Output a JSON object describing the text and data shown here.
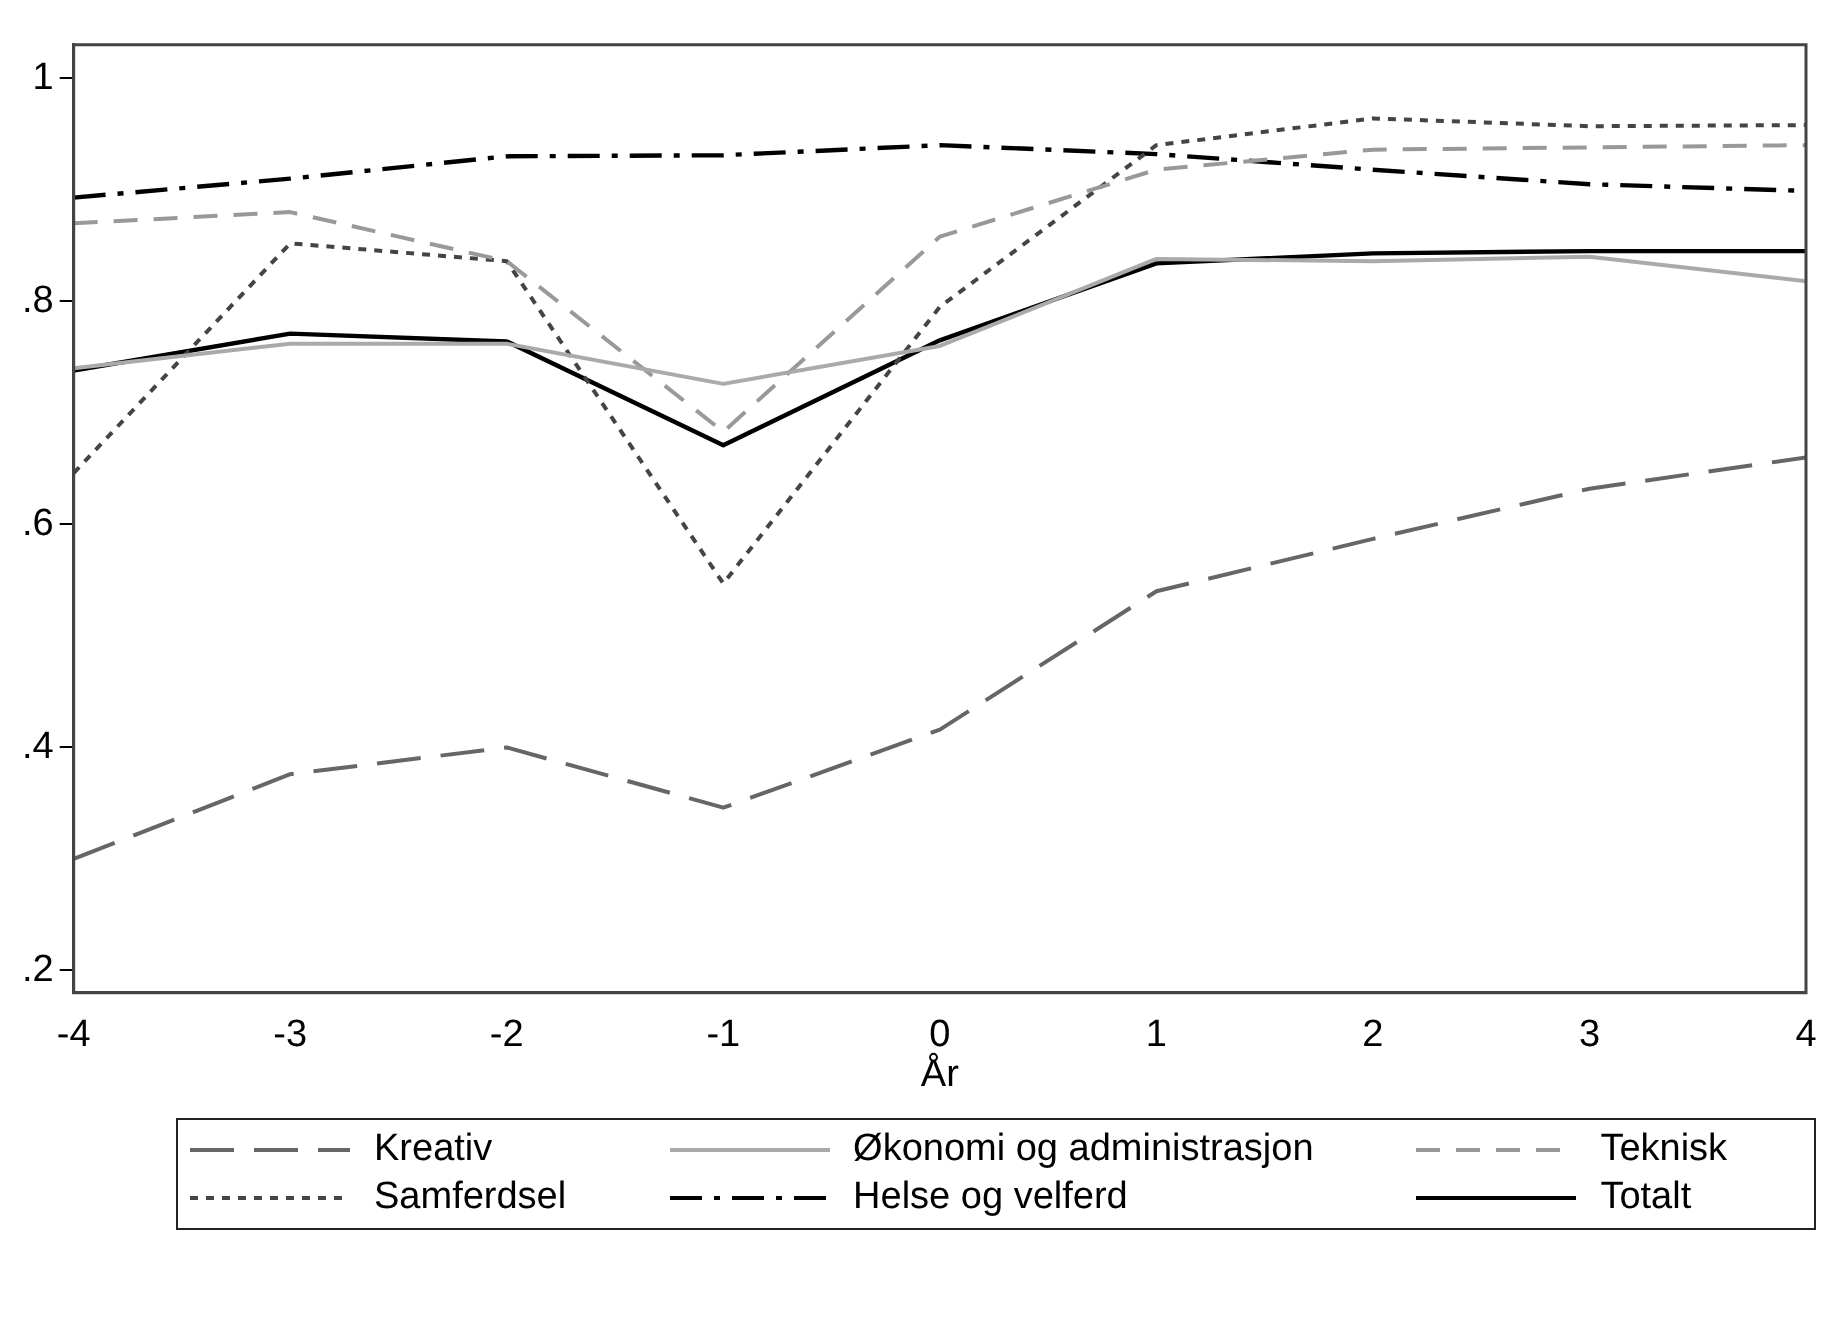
{
  "chart_data": {
    "type": "line",
    "xlabel": "År",
    "x": [
      -4,
      -3,
      -2,
      -1,
      0,
      1,
      2,
      3,
      4
    ],
    "xlim": [
      -4,
      4
    ],
    "xticks": [
      -4,
      -3,
      -2,
      -1,
      0,
      1,
      2,
      3,
      4
    ],
    "ylim": [
      0.18,
      1.03
    ],
    "yticks": [
      {
        "value": 0.2,
        "label": ".2"
      },
      {
        "value": 0.4,
        "label": ".4"
      },
      {
        "value": 0.6,
        "label": ".6"
      },
      {
        "value": 0.8,
        "label": ".8"
      },
      1
    ],
    "grid": false,
    "legend": "bottom",
    "marker": "none",
    "series": [
      {
        "name": "Kreativ",
        "color": "#666666",
        "line_style": "longdash",
        "values": [
          0.3,
          0.376,
          0.4,
          0.346,
          0.416,
          0.54,
          0.587,
          0.632,
          0.66
        ]
      },
      {
        "name": "Økonomi og administrasjon",
        "color": "#aaaaaa",
        "line_style": "solid",
        "values": [
          0.74,
          0.762,
          0.762,
          0.726,
          0.76,
          0.838,
          0.836,
          0.84,
          0.818
        ]
      },
      {
        "name": "Teknisk",
        "color": "#999999",
        "line_style": "dashed",
        "values": [
          0.87,
          0.88,
          0.836,
          0.683,
          0.858,
          0.918,
          0.936,
          0.938,
          0.94
        ]
      },
      {
        "name": "Samferdsel",
        "color": "#444444",
        "line_style": "dotted",
        "values": [
          0.646,
          0.852,
          0.836,
          0.547,
          0.795,
          0.94,
          0.964,
          0.957,
          0.958
        ]
      },
      {
        "name": "Helse og velferd",
        "color": "#000000",
        "line_style": "dashdot",
        "values": [
          0.893,
          0.91,
          0.93,
          0.931,
          0.94,
          0.932,
          0.918,
          0.905,
          0.899
        ]
      },
      {
        "name": "Totalt",
        "color": "#000000",
        "line_style": "solid",
        "values": [
          0.738,
          0.771,
          0.764,
          0.671,
          0.765,
          0.834,
          0.843,
          0.845,
          0.845
        ]
      }
    ]
  }
}
